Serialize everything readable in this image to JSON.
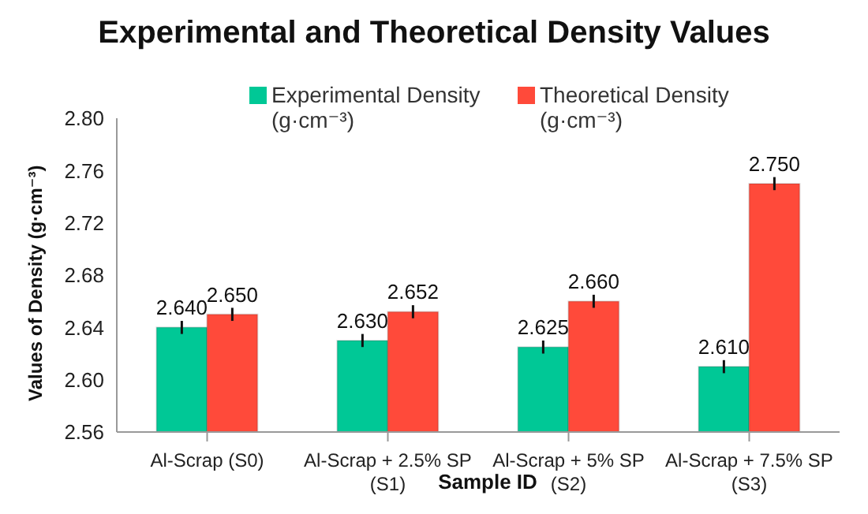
{
  "chart_data": {
    "type": "bar",
    "title": "Experimental and Theoretical Density Values",
    "xlabel": "Sample ID",
    "ylabel": "Values of Density (g·cm⁻³)",
    "categories": [
      "Al-Scrap (S0)",
      "Al-Scrap + 2.5% SP (S1)",
      "Al-Scrap + 5% SP (S2)",
      "Al-Scrap + 7.5% SP (S3)"
    ],
    "series": [
      {
        "name": "Experimental Density (g·cm⁻³)",
        "color": "#00c896",
        "values": [
          2.64,
          2.63,
          2.625,
          2.61
        ],
        "errors": [
          0.005,
          0.005,
          0.005,
          0.005
        ],
        "value_labels": [
          "2.640",
          "2.630",
          "2.625",
          "2.610"
        ]
      },
      {
        "name": "Theoretical Density (g·cm⁻³)",
        "color": "#ff4a3a",
        "values": [
          2.65,
          2.652,
          2.66,
          2.75
        ],
        "errors": [
          0.005,
          0.005,
          0.005,
          0.005
        ],
        "value_labels": [
          "2.650",
          "2.652",
          "2.660",
          "2.750"
        ]
      }
    ],
    "ylim": [
      2.56,
      2.8
    ],
    "yticks": [
      {
        "value": 2.56,
        "label": "2.56"
      },
      {
        "value": 2.6,
        "label": "2.60"
      },
      {
        "value": 2.64,
        "label": "2.64"
      },
      {
        "value": 2.68,
        "label": "2.68"
      },
      {
        "value": 2.72,
        "label": "2.72"
      },
      {
        "value": 2.76,
        "label": "2.76"
      },
      {
        "value": 2.8,
        "label": "2.80"
      }
    ],
    "grid": false,
    "legend": "top"
  }
}
